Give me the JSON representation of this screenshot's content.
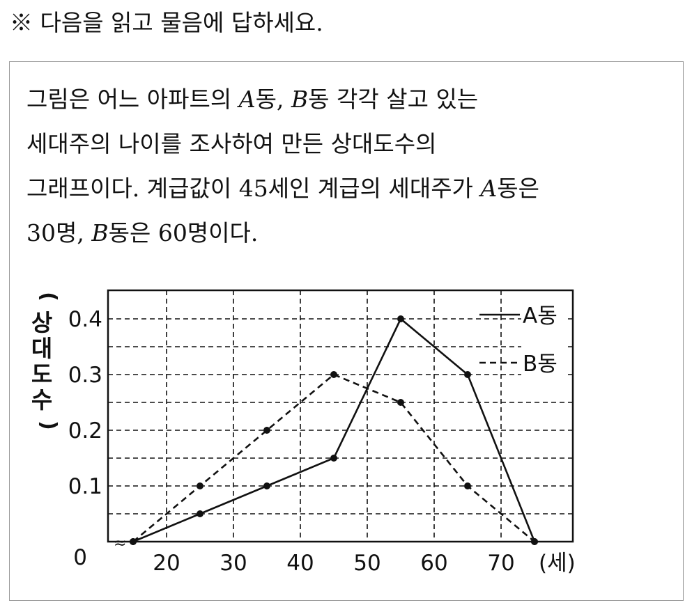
{
  "header": {
    "instruction": "※ 다음을 읽고 물음에 답하세요."
  },
  "passage": {
    "line1": [
      "그림은 어느 아파트의 ",
      "A",
      "동, ",
      "B",
      "동 각각 살고 있는"
    ],
    "line2": "세대주의 나이를 조사하여 만든 상대도수의",
    "line3": [
      "그래프이다. 계급값이 45세인 계급의 세대주가 ",
      "A",
      "동은"
    ],
    "line4": [
      "30명, ",
      "B",
      "동은 60명이다."
    ]
  },
  "chart_data": {
    "type": "line",
    "xlabel": "(세)",
    "ylabel": "(상대도수)",
    "x_ticks": [
      "20",
      "30",
      "40",
      "50",
      "60",
      "70"
    ],
    "y_ticks": [
      "0",
      "0.1",
      "0.2",
      "0.3",
      "0.4"
    ],
    "xlim": [
      10,
      80
    ],
    "ylim": [
      0,
      0.45
    ],
    "axis_break": "≈",
    "grid": true,
    "legend_position": "top-right",
    "series": [
      {
        "name": "A동",
        "style": "solid",
        "x": [
          15,
          25,
          35,
          45,
          55,
          65,
          75
        ],
        "y": [
          0,
          0.05,
          0.1,
          0.15,
          0.4,
          0.3,
          0
        ]
      },
      {
        "name": "B동",
        "style": "dashed",
        "x": [
          15,
          25,
          35,
          45,
          55,
          65,
          75
        ],
        "y": [
          0,
          0.1,
          0.2,
          0.3,
          0.25,
          0.1,
          0
        ]
      }
    ]
  }
}
